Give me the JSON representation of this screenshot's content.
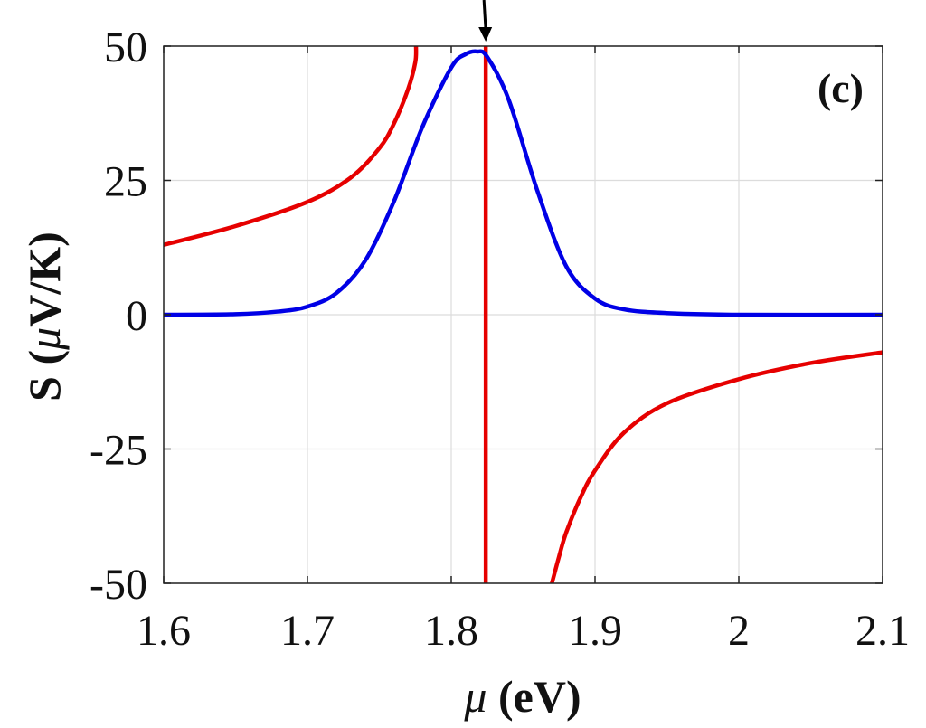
{
  "chart_data": {
    "type": "line",
    "panel_label": "(c)",
    "xlabel": {
      "symbol": "μ",
      "unit": " (eV)"
    },
    "ylabel": {
      "symbol": "μ",
      "prefix": "S (",
      "suffix": "V/K)"
    },
    "xlim": [
      1.6,
      2.1
    ],
    "ylim": [
      -50,
      50
    ],
    "grid": true,
    "xticks": [
      1.6,
      1.7,
      1.8,
      1.9,
      2,
      2.1
    ],
    "xtick_labels": [
      "1.6",
      "1.7",
      "1.8",
      "1.9",
      "2",
      "2.1"
    ],
    "yticks": [
      50,
      25,
      0,
      -25,
      -50
    ],
    "ytick_labels": [
      "50",
      "25",
      "0",
      "-25",
      "-50"
    ],
    "arrow_annotation_x": 1.824,
    "series": [
      {
        "name": "red-curve",
        "color": "#e60000",
        "x": [
          1.6,
          1.65,
          1.7,
          1.73,
          1.75,
          1.76,
          1.77,
          1.775,
          1.7755
        ],
        "y": [
          13,
          16.5,
          21,
          25.5,
          31,
          35.5,
          42,
          47,
          50
        ]
      },
      {
        "name": "red-curve-right",
        "color": "#e60000",
        "x": [
          1.87,
          1.875,
          1.88,
          1.89,
          1.9,
          1.92,
          1.95,
          2.0,
          2.05,
          2.1
        ],
        "y": [
          -50,
          -45,
          -40.5,
          -34,
          -29,
          -22,
          -16.5,
          -12,
          -9,
          -7
        ]
      },
      {
        "name": "red-vertical-line",
        "color": "#e60000",
        "x": [
          1.824,
          1.824
        ],
        "y": [
          50,
          -50
        ]
      },
      {
        "name": "blue-curve",
        "color": "#0000e6",
        "x": [
          1.6,
          1.65,
          1.68,
          1.7,
          1.72,
          1.74,
          1.76,
          1.78,
          1.8,
          1.81,
          1.818,
          1.825,
          1.84,
          1.86,
          1.88,
          1.9,
          1.92,
          1.95,
          2.0,
          2.1
        ],
        "y": [
          0,
          0.1,
          0.6,
          1.5,
          4,
          10,
          21,
          35,
          46,
          48.5,
          49,
          48,
          40,
          23,
          9,
          3,
          1,
          0.3,
          0,
          0
        ]
      }
    ]
  }
}
